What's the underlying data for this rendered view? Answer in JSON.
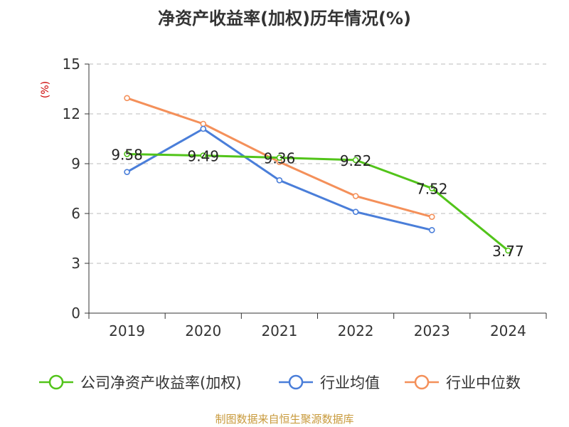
{
  "chart_data": {
    "type": "line",
    "title": "净资产收益率(加权)历年情况(%)",
    "ylabel": "(%)",
    "ylim": [
      0,
      15
    ],
    "yticks": [
      0,
      3,
      6,
      9,
      12,
      15
    ],
    "categories": [
      "2019",
      "2020",
      "2021",
      "2022",
      "2023",
      "2024"
    ],
    "series": [
      {
        "name": "公司净资产收益率(加权)",
        "color": "#52c41a",
        "values": [
          9.58,
          9.49,
          9.36,
          9.22,
          7.52,
          3.77
        ],
        "labels": [
          "9.58",
          "9.49",
          "9.36",
          "9.22",
          "7.52",
          "3.77"
        ]
      },
      {
        "name": "行业均值",
        "color": "#4a7ed9",
        "values": [
          8.5,
          11.1,
          8.0,
          6.1,
          5.0,
          null
        ]
      },
      {
        "name": "行业中位数",
        "color": "#f4905a",
        "values": [
          12.95,
          11.4,
          9.1,
          7.05,
          5.8,
          null
        ]
      }
    ],
    "grid": true,
    "legend_position": "bottom",
    "source": "制图数据来自恒生聚源数据库",
    "colors": {
      "axis": "#333333",
      "grid": "#bbbbbb",
      "ylabel": "#cc0000",
      "source": "#c89a3c"
    }
  }
}
